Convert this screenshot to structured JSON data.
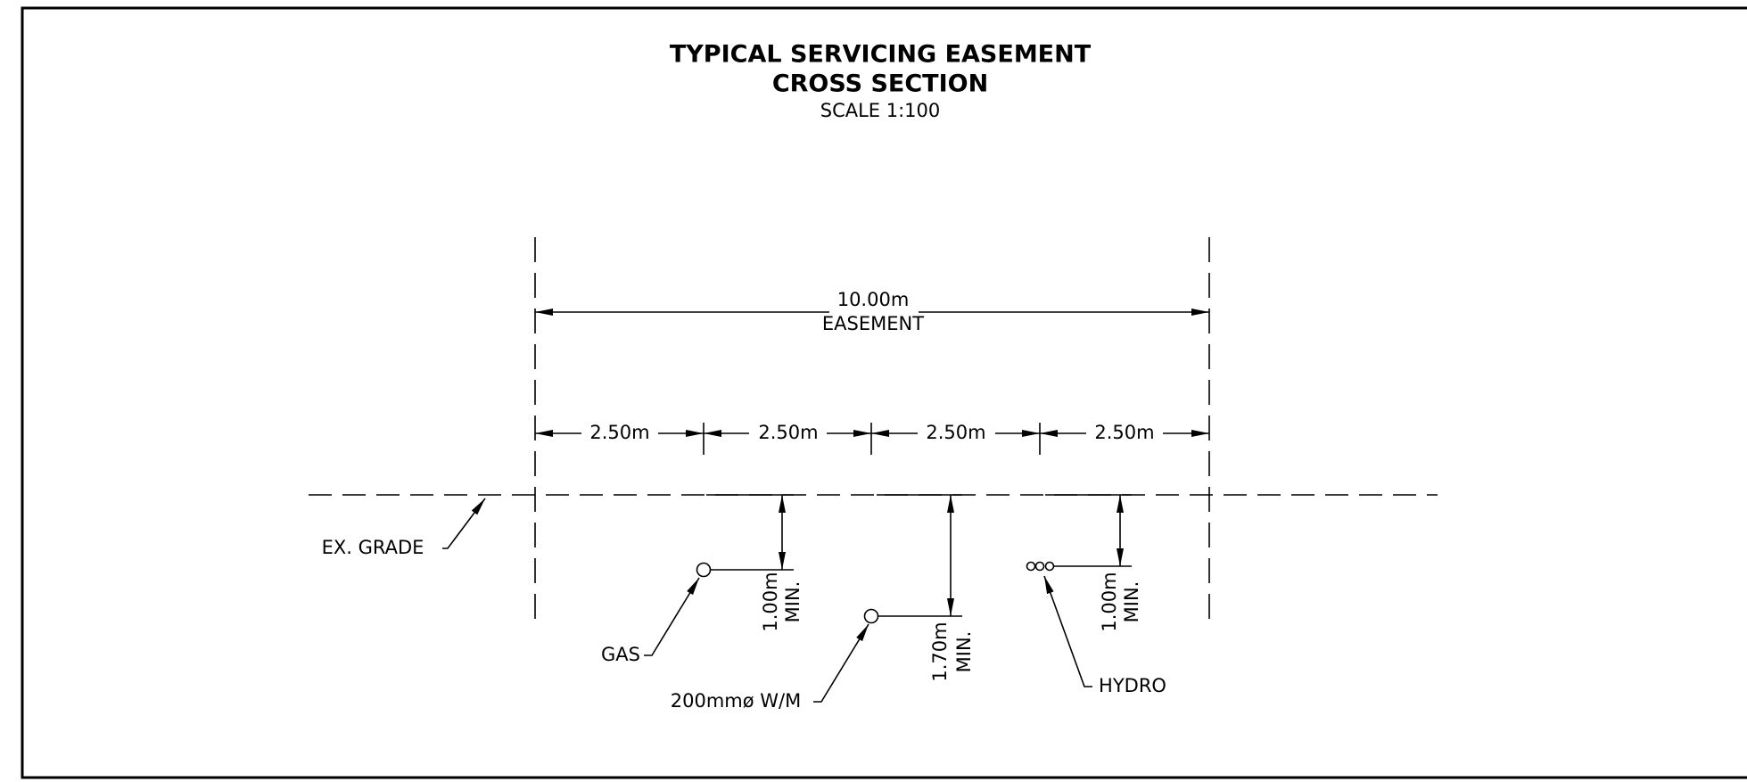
{
  "title": [
    "TYPICAL SERVICING EASEMENT",
    "CROSS SECTION"
  ],
  "scale": "SCALE 1:100",
  "easement": {
    "width": "10.00m",
    "label": "EASEMENT"
  },
  "segments": [
    "2.50m",
    "2.50m",
    "2.50m",
    "2.50m"
  ],
  "grade_label": "EX. GRADE",
  "utilities": [
    {
      "label": "GAS",
      "depth": "1.00m",
      "note": "MIN."
    },
    {
      "label": "200mmø W/M",
      "depth": "1.70m",
      "note": "MIN."
    },
    {
      "label": "HYDRO",
      "depth": "1.00m",
      "note": "MIN."
    }
  ]
}
